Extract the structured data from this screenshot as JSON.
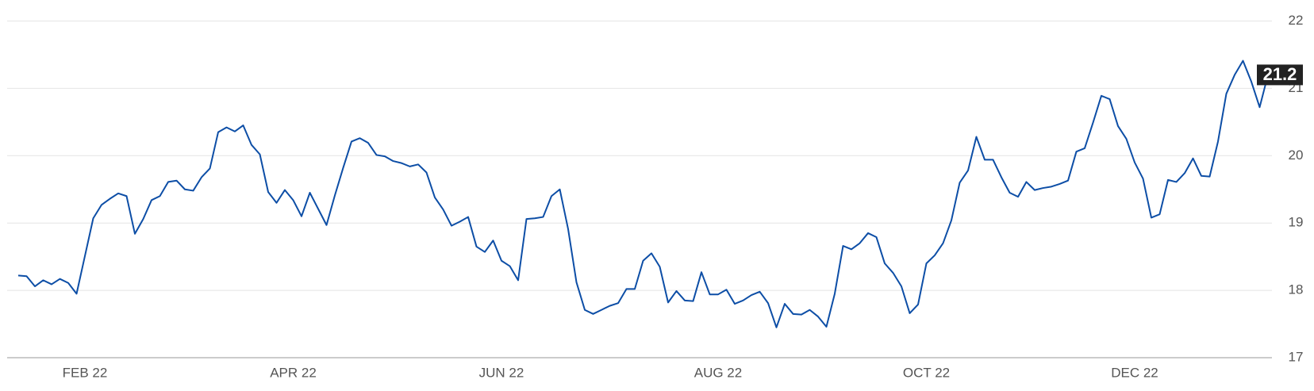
{
  "chart_data": {
    "type": "line",
    "categories": [
      null,
      null,
      null,
      null,
      null,
      null,
      null,
      null,
      "FEB 22",
      null,
      null,
      null,
      null,
      null,
      null,
      null,
      null,
      null,
      null,
      null,
      null,
      null,
      null,
      null,
      null,
      null,
      null,
      null,
      null,
      null,
      null,
      null,
      null,
      "APR 22",
      null,
      null,
      null,
      null,
      null,
      null,
      null,
      null,
      null,
      null,
      null,
      null,
      null,
      null,
      null,
      null,
      null,
      null,
      null,
      null,
      null,
      null,
      null,
      null,
      "JUN 22",
      null,
      null,
      null,
      null,
      null,
      null,
      null,
      null,
      null,
      null,
      null,
      null,
      null,
      null,
      null,
      null,
      null,
      null,
      null,
      null,
      null,
      null,
      null,
      null,
      null,
      "AUG 22",
      null,
      null,
      null,
      null,
      null,
      null,
      null,
      null,
      null,
      null,
      null,
      null,
      null,
      null,
      null,
      null,
      null,
      null,
      null,
      null,
      null,
      null,
      null,
      null,
      "OCT 22",
      null,
      null,
      null,
      null,
      null,
      null,
      null,
      null,
      null,
      null,
      null,
      null,
      null,
      null,
      null,
      null,
      null,
      null,
      null,
      null,
      null,
      null,
      null,
      null,
      "DEC 22",
      null,
      null,
      null,
      null,
      null,
      null,
      null,
      null,
      null,
      null,
      null,
      null,
      null,
      null,
      null,
      null
    ],
    "values": [
      18.22,
      18.21,
      18.06,
      18.15,
      18.09,
      18.17,
      18.11,
      17.95,
      18.51,
      19.07,
      19.27,
      19.36,
      19.44,
      19.4,
      18.84,
      19.06,
      19.34,
      19.4,
      19.61,
      19.63,
      19.5,
      19.48,
      19.68,
      19.81,
      20.35,
      20.42,
      20.36,
      20.45,
      20.16,
      20.02,
      19.46,
      19.3,
      19.49,
      19.34,
      19.1,
      19.45,
      19.21,
      18.97,
      19.41,
      19.82,
      20.21,
      20.26,
      20.19,
      20.01,
      19.99,
      19.92,
      19.89,
      19.84,
      19.87,
      19.75,
      19.38,
      19.2,
      18.96,
      19.02,
      19.09,
      18.65,
      18.57,
      18.74,
      18.44,
      18.36,
      18.15,
      19.06,
      19.07,
      19.09,
      19.4,
      19.5,
      18.91,
      18.12,
      17.71,
      17.65,
      17.71,
      17.77,
      17.81,
      18.02,
      18.02,
      18.44,
      18.55,
      18.35,
      17.82,
      17.99,
      17.85,
      17.84,
      18.27,
      17.94,
      17.94,
      18.01,
      17.8,
      17.85,
      17.93,
      17.98,
      17.81,
      17.45,
      17.8,
      17.65,
      17.64,
      17.71,
      17.61,
      17.46,
      17.95,
      18.66,
      18.61,
      18.7,
      18.85,
      18.79,
      18.4,
      18.26,
      18.06,
      17.66,
      17.79,
      18.4,
      18.52,
      18.7,
      19.04,
      19.6,
      19.78,
      20.28,
      19.94,
      19.94,
      19.68,
      19.45,
      19.39,
      19.61,
      19.49,
      19.52,
      19.54,
      19.58,
      19.63,
      20.06,
      20.11,
      20.49,
      20.89,
      20.84,
      20.44,
      20.25,
      19.9,
      19.66,
      19.08,
      19.13,
      19.64,
      19.61,
      19.74,
      19.96,
      19.7,
      19.69,
      20.21,
      20.92,
      21.2,
      21.41,
      21.1,
      20.72,
      21.2
    ],
    "color": "#0d4ea6",
    "ylim": [
      17,
      22
    ],
    "yticks": [
      17,
      18,
      19,
      20,
      21,
      22
    ],
    "grid": true
  }
}
